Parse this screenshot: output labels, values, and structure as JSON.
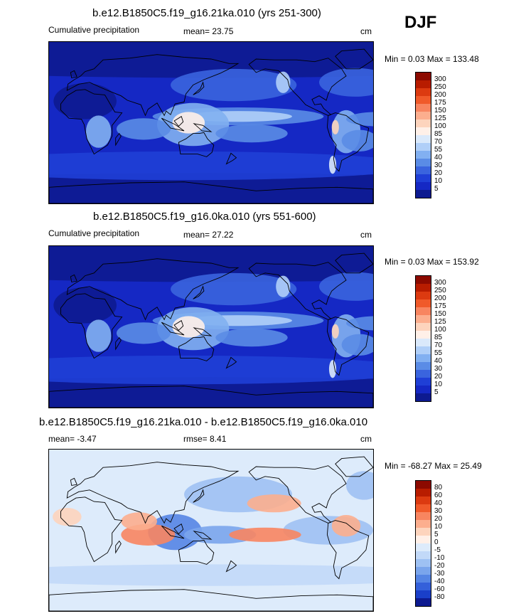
{
  "season": "DJF",
  "panels": [
    {
      "id": "p1",
      "title": "b.e12.B1850C5.f19_g16.21ka.010 (yrs 251-300)",
      "left_label": "Cumulative precipitation",
      "center_label": "mean=  23.75",
      "right_label": "cm",
      "minmax": "Min =   0.03 Max = 133.48",
      "kind": "precip",
      "mean": 23.75
    },
    {
      "id": "p2",
      "title": "b.e12.B1850C5.f19_g16.0ka.010 (yrs 551-600)",
      "left_label": "Cumulative precipitation",
      "center_label": "mean=  27.22",
      "right_label": "cm",
      "minmax": "Min =   0.03 Max = 153.92",
      "kind": "precip",
      "mean": 27.22
    },
    {
      "id": "p3",
      "title": "b.e12.B1850C5.f19_g16.21ka.010 - b.e12.B1850C5.f19_g16.0ka.010",
      "left_label": "mean=  -3.47",
      "center_label": "rmse=   8.41",
      "right_label": "cm",
      "minmax": "Min = -68.27 Max =  25.49",
      "kind": "diff",
      "mean": -3.47,
      "rmse": 8.41
    }
  ],
  "chart_data": {
    "type": "heatmap",
    "precip_levels": [
      "300",
      "250",
      "200",
      "175",
      "150",
      "125",
      "100",
      "85",
      "70",
      "55",
      "40",
      "30",
      "20",
      "10",
      "5"
    ],
    "precip_colors": [
      "#8c0a00",
      "#b81c00",
      "#dc3a10",
      "#f05a2a",
      "#f88560",
      "#fcae8e",
      "#fdd4bd",
      "#fff0e8",
      "#dae9fb",
      "#b0cff8",
      "#82b0f1",
      "#5a8ce6",
      "#3a64de",
      "#1f3fd6",
      "#1528c4",
      "#0d1a90"
    ],
    "diff_levels": [
      "80",
      "60",
      "40",
      "30",
      "20",
      "10",
      "5",
      "0",
      "-5",
      "-10",
      "-20",
      "-30",
      "-40",
      "-60",
      "-80"
    ],
    "diff_colors": [
      "#8c0a00",
      "#b81c00",
      "#dc3a10",
      "#f05a2a",
      "#f88560",
      "#fcae8e",
      "#fdd4bd",
      "#fff0e8",
      "#ddebfb",
      "#c2d9f8",
      "#9ec1f3",
      "#7aa5ec",
      "#5585e4",
      "#3460da",
      "#1a3fc9",
      "#0d1a90"
    ]
  }
}
